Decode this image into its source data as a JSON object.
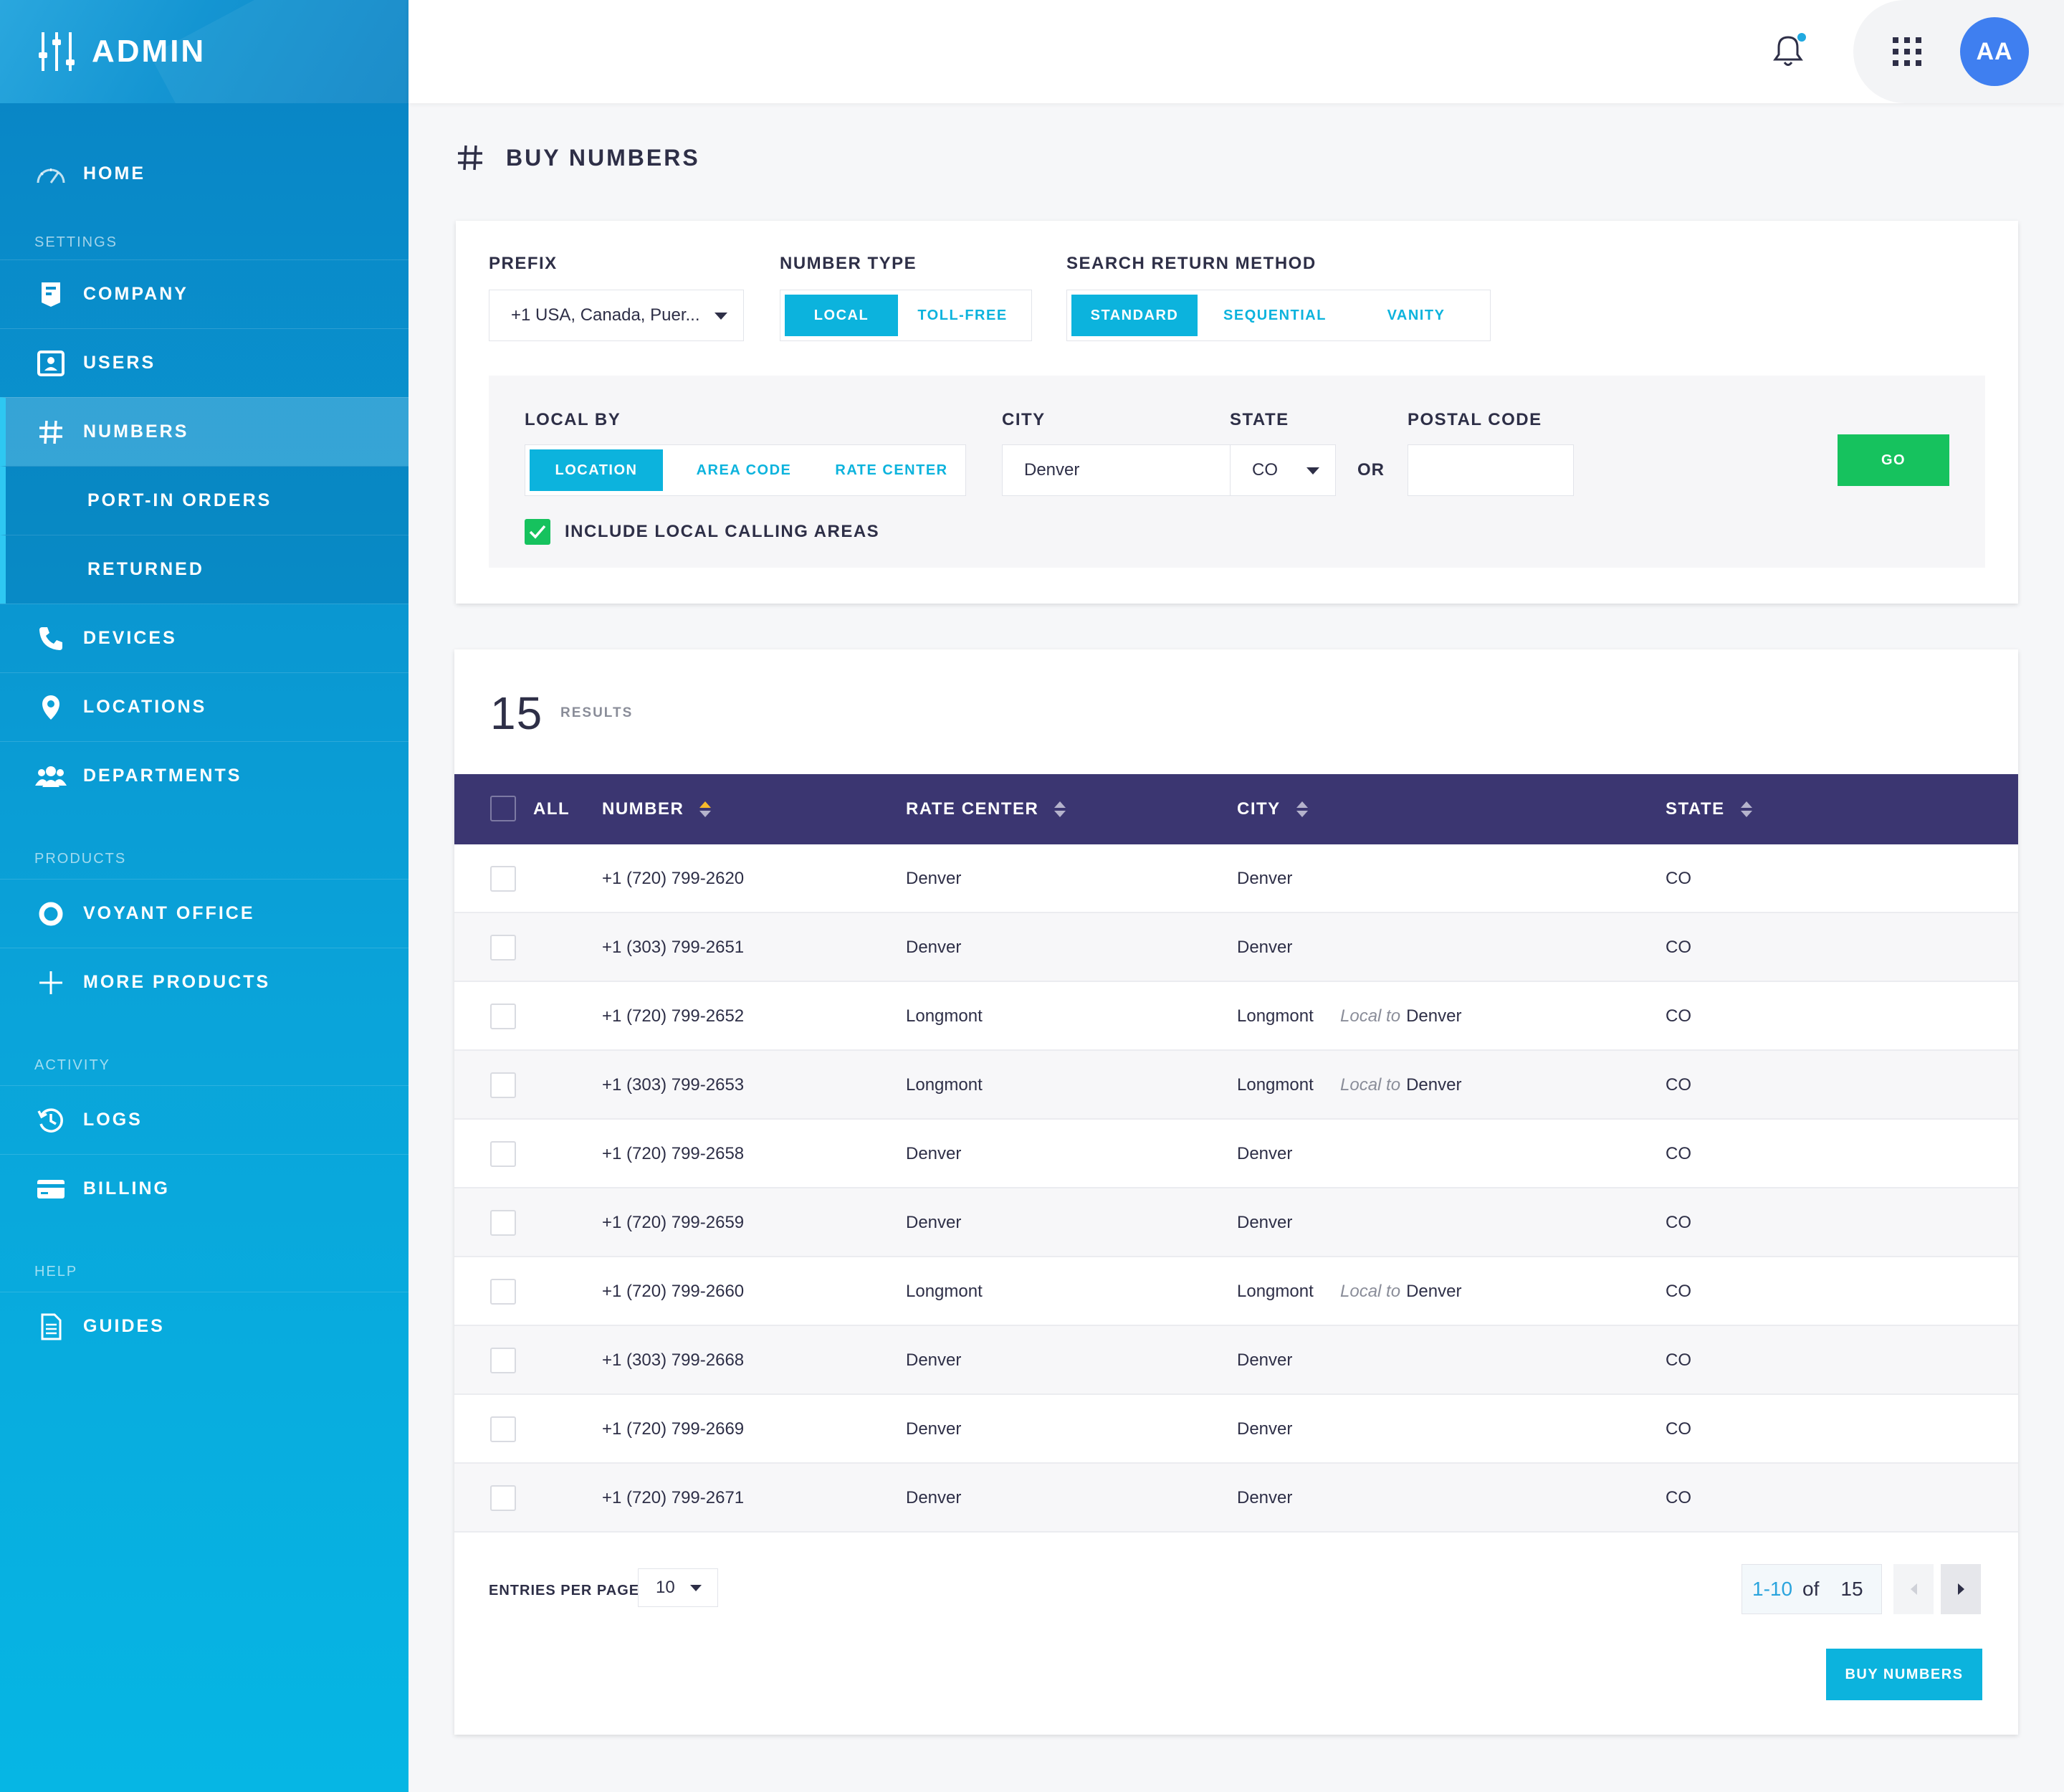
{
  "app": {
    "title": "ADMIN"
  },
  "sidebar": {
    "home": "HOME",
    "sections": {
      "settings": "SETTINGS",
      "products": "PRODUCTS",
      "activity": "ACTIVITY",
      "help": "HELP"
    },
    "settings_items": [
      "COMPANY",
      "USERS",
      "NUMBERS"
    ],
    "numbers_sub": [
      "PORT-IN ORDERS",
      "RETURNED"
    ],
    "more_settings": [
      "DEVICES",
      "LOCATIONS",
      "DEPARTMENTS"
    ],
    "products_items": [
      "VOYANT OFFICE",
      "MORE PRODUCTS"
    ],
    "activity_items": [
      "LOGS",
      "BILLING"
    ],
    "help_items": [
      "GUIDES"
    ],
    "active": "NUMBERS"
  },
  "topbar": {
    "avatar_initials": "AA",
    "has_notification": true
  },
  "page": {
    "title": "BUY NUMBERS"
  },
  "search": {
    "prefix_label": "PREFIX",
    "prefix_value": "+1 USA, Canada, Puer...",
    "number_type_label": "NUMBER TYPE",
    "number_type_options": [
      "LOCAL",
      "TOLL-FREE"
    ],
    "number_type_selected": "LOCAL",
    "return_method_label": "SEARCH RETURN METHOD",
    "return_method_options": [
      "STANDARD",
      "SEQUENTIAL",
      "VANITY"
    ],
    "return_method_selected": "STANDARD",
    "local_by_label": "LOCAL BY",
    "local_by_options": [
      "LOCATION",
      "AREA CODE",
      "RATE CENTER"
    ],
    "local_by_selected": "LOCATION",
    "city_label": "CITY",
    "city_value": "Denver",
    "state_label": "STATE",
    "state_value": "CO",
    "or_text": "OR",
    "postal_label": "POSTAL CODE",
    "postal_value": "",
    "go_label": "GO",
    "include_local_label": "INCLUDE LOCAL CALLING AREAS",
    "include_local_checked": true
  },
  "results": {
    "count": "15",
    "count_label": "RESULTS",
    "columns": {
      "all": "ALL",
      "number": "NUMBER",
      "rate_center": "RATE CENTER",
      "city": "CITY",
      "state": "STATE"
    },
    "sorted_column": "NUMBER",
    "rows": [
      {
        "number": "+1 (720) 799-2620",
        "rate_center": "Denver",
        "city": "Denver",
        "local_to_prefix": "",
        "local_to": "",
        "state": "CO"
      },
      {
        "number": "+1 (303) 799-2651",
        "rate_center": "Denver",
        "city": "Denver",
        "local_to_prefix": "",
        "local_to": "",
        "state": "CO"
      },
      {
        "number": "+1 (720) 799-2652",
        "rate_center": "Longmont",
        "city": "Longmont",
        "local_to_prefix": "Local to",
        "local_to": "Denver",
        "state": "CO"
      },
      {
        "number": "+1 (303) 799-2653",
        "rate_center": "Longmont",
        "city": "Longmont",
        "local_to_prefix": "Local to",
        "local_to": "Denver",
        "state": "CO"
      },
      {
        "number": "+1 (720) 799-2658",
        "rate_center": "Denver",
        "city": "Denver",
        "local_to_prefix": "",
        "local_to": "",
        "state": "CO"
      },
      {
        "number": "+1 (720) 799-2659",
        "rate_center": "Denver",
        "city": "Denver",
        "local_to_prefix": "",
        "local_to": "",
        "state": "CO"
      },
      {
        "number": "+1 (720) 799-2660",
        "rate_center": "Longmont",
        "city": "Longmont",
        "local_to_prefix": "Local to",
        "local_to": "Denver",
        "state": "CO"
      },
      {
        "number": "+1 (303) 799-2668",
        "rate_center": "Denver",
        "city": "Denver",
        "local_to_prefix": "",
        "local_to": "",
        "state": "CO"
      },
      {
        "number": "+1 (720) 799-2669",
        "rate_center": "Denver",
        "city": "Denver",
        "local_to_prefix": "",
        "local_to": "",
        "state": "CO"
      },
      {
        "number": "+1 (720) 799-2671",
        "rate_center": "Denver",
        "city": "Denver",
        "local_to_prefix": "",
        "local_to": "",
        "state": "CO"
      }
    ],
    "entries_label": "ENTRIES PER PAGE",
    "entries_value": "10",
    "pager": {
      "range": "1-10",
      "of": "of",
      "total": "15"
    },
    "buy_label": "BUY NUMBERS"
  },
  "colors": {
    "brand": "#0aa3d9",
    "accent": "#0cb3dd",
    "go": "#16c25e",
    "table_header": "#3b3671",
    "avatar": "#3f7ff0",
    "sort_active": "#f6b92b"
  }
}
